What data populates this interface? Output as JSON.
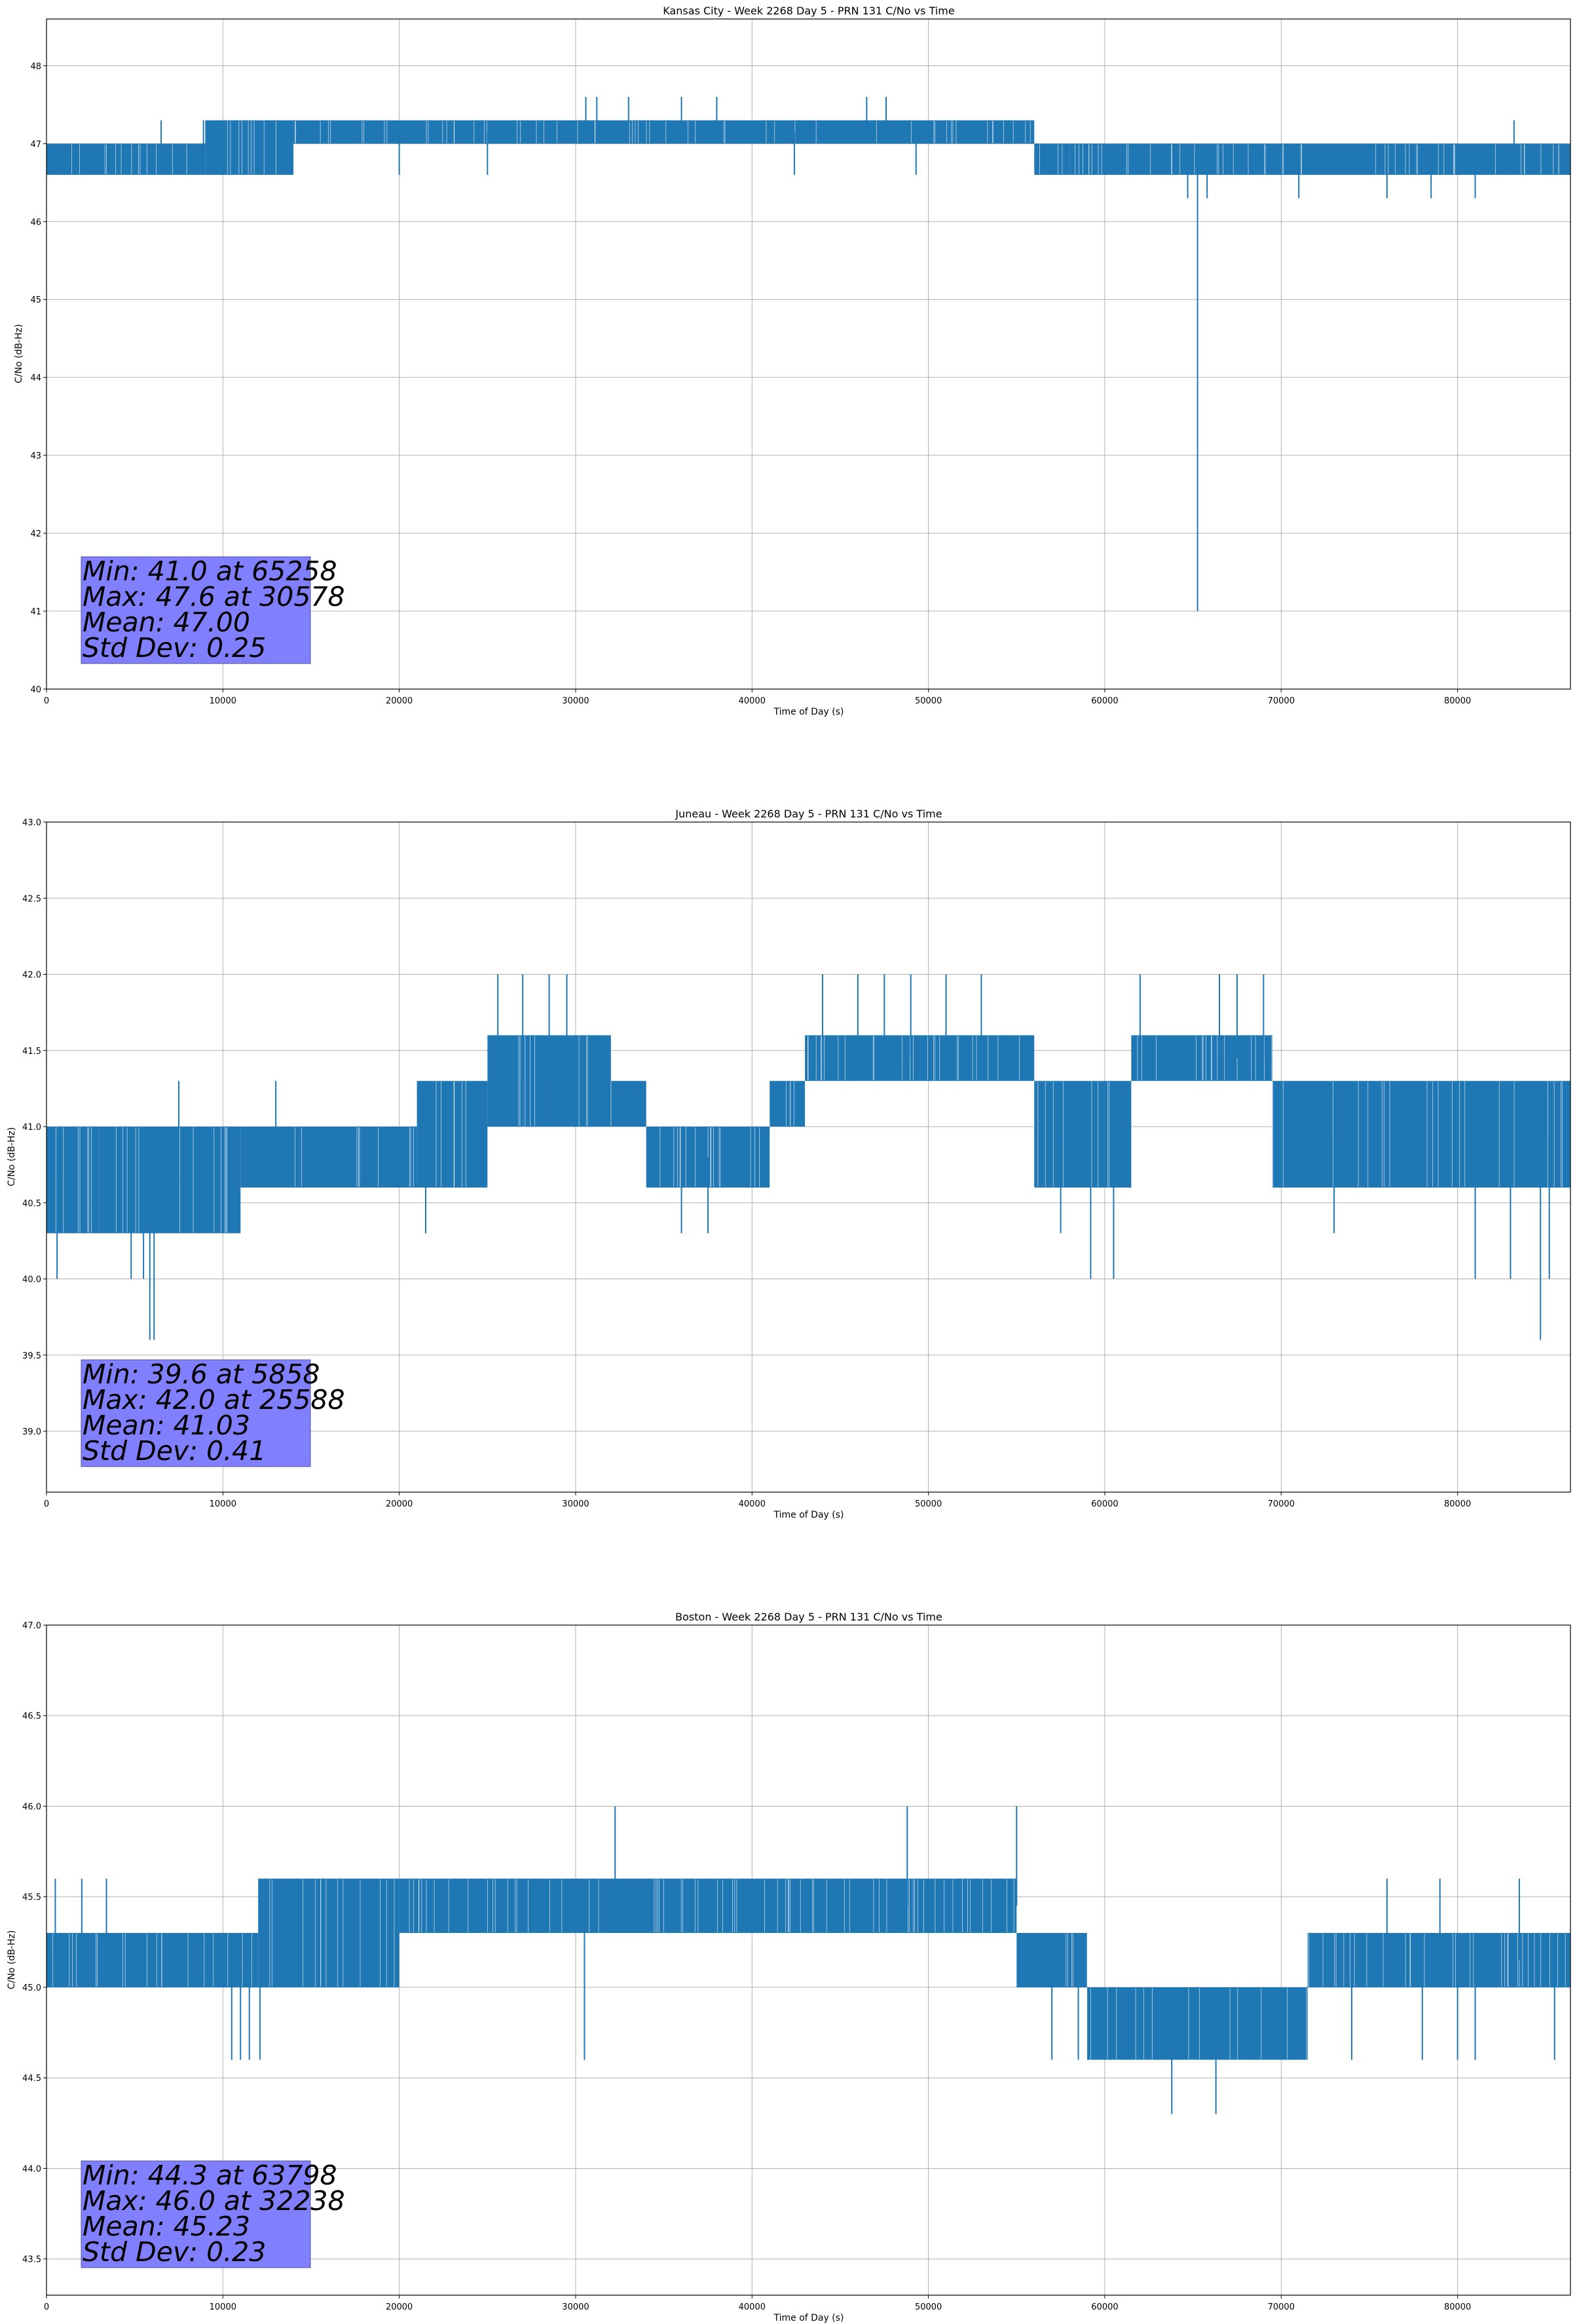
{
  "colors": {
    "series": "#1f77b4",
    "grid": "#b0b0b0",
    "axes": "#000000",
    "stats_box_fill": "#8080ff",
    "stats_box_edge": "#555599"
  },
  "chart_data": [
    {
      "type": "line",
      "title": "Kansas City - Week 2268 Day 5 - PRN 131 C/No vs Time",
      "xlabel": "Time of Day (s)",
      "ylabel": "C/No (dB-Hz)",
      "xlim": [
        0,
        86400
      ],
      "ylim": [
        40,
        48.6
      ],
      "xticks": [
        0,
        10000,
        20000,
        30000,
        40000,
        50000,
        60000,
        70000,
        80000
      ],
      "xtick_labels": [
        "0",
        "10000",
        "20000",
        "30000",
        "40000",
        "50000",
        "60000",
        "70000",
        "80000"
      ],
      "yticks": [
        40,
        41,
        42,
        43,
        44,
        45,
        46,
        47,
        48
      ],
      "ytick_labels": [
        "40",
        "41",
        "42",
        "43",
        "44",
        "45",
        "46",
        "47",
        "48"
      ],
      "grid": true,
      "series": [
        {
          "segments": [
            {
              "x0": 0,
              "x1": 9000,
              "lo": 46.6,
              "hi": 47.0
            },
            {
              "x0": 9000,
              "x1": 14000,
              "lo": 46.6,
              "hi": 47.3
            },
            {
              "x0": 14000,
              "x1": 30000,
              "lo": 47.0,
              "hi": 47.3
            },
            {
              "x0": 30000,
              "x1": 56000,
              "lo": 47.0,
              "hi": 47.3
            },
            {
              "x0": 56000,
              "x1": 58000,
              "lo": 46.6,
              "hi": 47.0
            },
            {
              "x0": 58000,
              "x1": 70000,
              "lo": 46.6,
              "hi": 47.0
            },
            {
              "x0": 70000,
              "x1": 86400,
              "lo": 46.6,
              "hi": 47.0
            }
          ],
          "spikes": [
            {
              "x": 65258,
              "y": 41.0
            },
            {
              "x": 30578,
              "y": 47.6
            },
            {
              "x": 31200,
              "y": 47.6
            },
            {
              "x": 33000,
              "y": 47.6
            },
            {
              "x": 36000,
              "y": 47.6
            },
            {
              "x": 38000,
              "y": 47.6
            },
            {
              "x": 46500,
              "y": 47.6
            },
            {
              "x": 47600,
              "y": 47.6
            },
            {
              "x": 42400,
              "y": 46.6
            },
            {
              "x": 49300,
              "y": 46.6
            },
            {
              "x": 64700,
              "y": 46.3
            },
            {
              "x": 65800,
              "y": 46.3
            },
            {
              "x": 71000,
              "y": 46.3
            },
            {
              "x": 76000,
              "y": 46.3
            },
            {
              "x": 78500,
              "y": 46.3
            },
            {
              "x": 81000,
              "y": 46.3
            },
            {
              "x": 83200,
              "y": 47.3
            },
            {
              "x": 20000,
              "y": 46.6
            },
            {
              "x": 25000,
              "y": 46.6
            },
            {
              "x": 8900,
              "y": 47.3
            },
            {
              "x": 6500,
              "y": 47.3
            }
          ]
        }
      ],
      "stats_lines": [
        "Min: 41.0 at 65258",
        "Max: 47.6 at 30578",
        "Mean: 47.00",
        "Std Dev: 0.25"
      ]
    },
    {
      "type": "line",
      "title": "Juneau - Week 2268 Day 5 - PRN 131 C/No vs Time",
      "xlabel": "Time of Day (s)",
      "ylabel": "C/No (dB-Hz)",
      "xlim": [
        0,
        86400
      ],
      "ylim": [
        38.6,
        43.0
      ],
      "xticks": [
        0,
        10000,
        20000,
        30000,
        40000,
        50000,
        60000,
        70000,
        80000
      ],
      "xtick_labels": [
        "0",
        "10000",
        "20000",
        "30000",
        "40000",
        "50000",
        "60000",
        "70000",
        "80000"
      ],
      "yticks": [
        39.0,
        39.5,
        40.0,
        40.5,
        41.0,
        41.5,
        42.0,
        42.5,
        43.0
      ],
      "ytick_labels": [
        "39.0",
        "39.5",
        "40.0",
        "40.5",
        "41.0",
        "41.5",
        "42.0",
        "42.5",
        "43.0"
      ],
      "grid": true,
      "series": [
        {
          "segments": [
            {
              "x0": 0,
              "x1": 3000,
              "lo": 40.3,
              "hi": 41.0
            },
            {
              "x0": 3000,
              "x1": 11000,
              "lo": 40.3,
              "hi": 41.0
            },
            {
              "x0": 11000,
              "x1": 21000,
              "lo": 40.6,
              "hi": 41.0
            },
            {
              "x0": 21000,
              "x1": 25000,
              "lo": 40.6,
              "hi": 41.3
            },
            {
              "x0": 25000,
              "x1": 27000,
              "lo": 41.0,
              "hi": 41.6
            },
            {
              "x0": 27000,
              "x1": 32000,
              "lo": 41.0,
              "hi": 41.6
            },
            {
              "x0": 32000,
              "x1": 34000,
              "lo": 41.0,
              "hi": 41.3
            },
            {
              "x0": 34000,
              "x1": 41000,
              "lo": 40.6,
              "hi": 41.0
            },
            {
              "x0": 41000,
              "x1": 43000,
              "lo": 41.0,
              "hi": 41.3
            },
            {
              "x0": 43000,
              "x1": 56000,
              "lo": 41.3,
              "hi": 41.6
            },
            {
              "x0": 56000,
              "x1": 61500,
              "lo": 40.6,
              "hi": 41.3
            },
            {
              "x0": 61500,
              "x1": 69500,
              "lo": 41.3,
              "hi": 41.6
            },
            {
              "x0": 69500,
              "x1": 86400,
              "lo": 40.6,
              "hi": 41.3
            }
          ],
          "spikes": [
            {
              "x": 5858,
              "y": 39.6
            },
            {
              "x": 6100,
              "y": 39.6
            },
            {
              "x": 84700,
              "y": 39.6
            },
            {
              "x": 600,
              "y": 40.0
            },
            {
              "x": 4800,
              "y": 40.0
            },
            {
              "x": 5500,
              "y": 40.0
            },
            {
              "x": 59200,
              "y": 40.0
            },
            {
              "x": 60500,
              "y": 40.0
            },
            {
              "x": 81000,
              "y": 40.0
            },
            {
              "x": 83000,
              "y": 40.0
            },
            {
              "x": 85200,
              "y": 40.0
            },
            {
              "x": 25588,
              "y": 42.0
            },
            {
              "x": 27000,
              "y": 42.0
            },
            {
              "x": 28500,
              "y": 42.0
            },
            {
              "x": 29500,
              "y": 42.0
            },
            {
              "x": 44000,
              "y": 42.0
            },
            {
              "x": 46000,
              "y": 42.0
            },
            {
              "x": 47500,
              "y": 42.0
            },
            {
              "x": 49000,
              "y": 42.0
            },
            {
              "x": 51000,
              "y": 42.0
            },
            {
              "x": 53000,
              "y": 42.0
            },
            {
              "x": 62000,
              "y": 42.0
            },
            {
              "x": 66500,
              "y": 42.0
            },
            {
              "x": 67500,
              "y": 42.0
            },
            {
              "x": 69000,
              "y": 42.0
            },
            {
              "x": 7500,
              "y": 41.3
            },
            {
              "x": 13000,
              "y": 41.3
            },
            {
              "x": 21500,
              "y": 40.3
            },
            {
              "x": 36000,
              "y": 40.3
            },
            {
              "x": 37500,
              "y": 40.3
            },
            {
              "x": 57500,
              "y": 40.3
            },
            {
              "x": 73000,
              "y": 40.3
            }
          ]
        }
      ],
      "stats_lines": [
        "Min: 39.6 at 5858",
        "Max: 42.0 at 25588",
        "Mean: 41.03",
        "Std Dev: 0.41"
      ]
    },
    {
      "type": "line",
      "title": "Boston - Week 2268 Day 5 - PRN 131 C/No vs Time",
      "xlabel": "Time of Day (s)",
      "ylabel": "C/No (dB-Hz)",
      "xlim": [
        0,
        86400
      ],
      "ylim": [
        43.3,
        47.0
      ],
      "xticks": [
        0,
        10000,
        20000,
        30000,
        40000,
        50000,
        60000,
        70000,
        80000
      ],
      "xtick_labels": [
        "0",
        "10000",
        "20000",
        "30000",
        "40000",
        "50000",
        "60000",
        "70000",
        "80000"
      ],
      "yticks": [
        43.5,
        44.0,
        44.5,
        45.0,
        45.5,
        46.0,
        46.5,
        47.0
      ],
      "ytick_labels": [
        "43.5",
        "44.0",
        "44.5",
        "45.0",
        "45.5",
        "46.0",
        "46.5",
        "47.0"
      ],
      "grid": true,
      "series": [
        {
          "segments": [
            {
              "x0": 0,
              "x1": 12000,
              "lo": 45.0,
              "hi": 45.3
            },
            {
              "x0": 12000,
              "x1": 20000,
              "lo": 45.0,
              "hi": 45.6
            },
            {
              "x0": 20000,
              "x1": 55000,
              "lo": 45.3,
              "hi": 45.6
            },
            {
              "x0": 55000,
              "x1": 59000,
              "lo": 45.0,
              "hi": 45.3
            },
            {
              "x0": 59000,
              "x1": 71500,
              "lo": 44.6,
              "hi": 45.0
            },
            {
              "x0": 71500,
              "x1": 86400,
              "lo": 45.0,
              "hi": 45.3
            }
          ],
          "spikes": [
            {
              "x": 32238,
              "y": 46.0
            },
            {
              "x": 48800,
              "y": 46.0
            },
            {
              "x": 55000,
              "y": 46.0
            },
            {
              "x": 63798,
              "y": 44.3
            },
            {
              "x": 66300,
              "y": 44.3
            },
            {
              "x": 10500,
              "y": 44.6
            },
            {
              "x": 11000,
              "y": 44.6
            },
            {
              "x": 11500,
              "y": 44.6
            },
            {
              "x": 12100,
              "y": 44.6
            },
            {
              "x": 30500,
              "y": 44.6
            },
            {
              "x": 57000,
              "y": 44.6
            },
            {
              "x": 58500,
              "y": 44.6
            },
            {
              "x": 74000,
              "y": 44.6
            },
            {
              "x": 78000,
              "y": 44.6
            },
            {
              "x": 80000,
              "y": 44.6
            },
            {
              "x": 81000,
              "y": 44.6
            },
            {
              "x": 85500,
              "y": 44.6
            },
            {
              "x": 500,
              "y": 45.6
            },
            {
              "x": 2000,
              "y": 45.6
            },
            {
              "x": 3400,
              "y": 45.6
            },
            {
              "x": 76000,
              "y": 45.6
            },
            {
              "x": 79000,
              "y": 45.6
            },
            {
              "x": 83500,
              "y": 45.6
            }
          ]
        }
      ],
      "stats_lines": [
        "Min: 44.3 at 63798",
        "Max: 46.0 at 32238",
        "Mean: 45.23",
        "Std Dev: 0.23"
      ]
    }
  ]
}
